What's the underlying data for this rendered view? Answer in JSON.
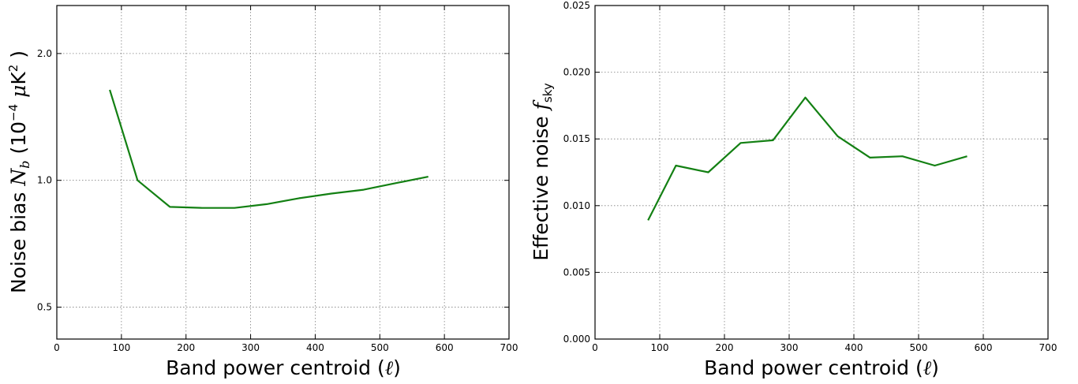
{
  "chart_data": [
    {
      "type": "line",
      "xlabel": "Band power centroid (ℓ)",
      "ylabel": "Noise bias N_b (10^-4 μK^2)",
      "yscale": "log",
      "xlim": [
        0,
        700
      ],
      "ylim": [
        0.42,
        2.6
      ],
      "grid": true,
      "xticks": [
        "0",
        "100",
        "200",
        "300",
        "400",
        "500",
        "600",
        "700"
      ],
      "yticks": [
        "0.5",
        "1.0",
        "2.0"
      ],
      "color": "#138013",
      "series": [
        {
          "x": [
            82,
            125,
            175,
            225,
            275,
            325,
            375,
            425,
            475,
            525,
            575
          ],
          "y": [
            1.64,
            1.0,
            0.865,
            0.86,
            0.86,
            0.878,
            0.907,
            0.93,
            0.95,
            0.985,
            1.02
          ]
        }
      ]
    },
    {
      "type": "line",
      "xlabel": "Band power centroid (ℓ)",
      "ylabel": "Effective noise f_sky",
      "xlim": [
        0,
        700
      ],
      "ylim": [
        0.0,
        0.025
      ],
      "grid": true,
      "xticks": [
        "0",
        "100",
        "200",
        "300",
        "400",
        "500",
        "600",
        "700"
      ],
      "yticks": [
        "0.000",
        "0.005",
        "0.010",
        "0.015",
        "0.020",
        "0.025"
      ],
      "color": "#138013",
      "series": [
        {
          "x": [
            82,
            125,
            175,
            225,
            275,
            325,
            375,
            425,
            475,
            525,
            575
          ],
          "y": [
            0.0089,
            0.013,
            0.0125,
            0.0147,
            0.0149,
            0.0181,
            0.0152,
            0.0136,
            0.0137,
            0.013,
            0.0137
          ]
        }
      ]
    }
  ]
}
